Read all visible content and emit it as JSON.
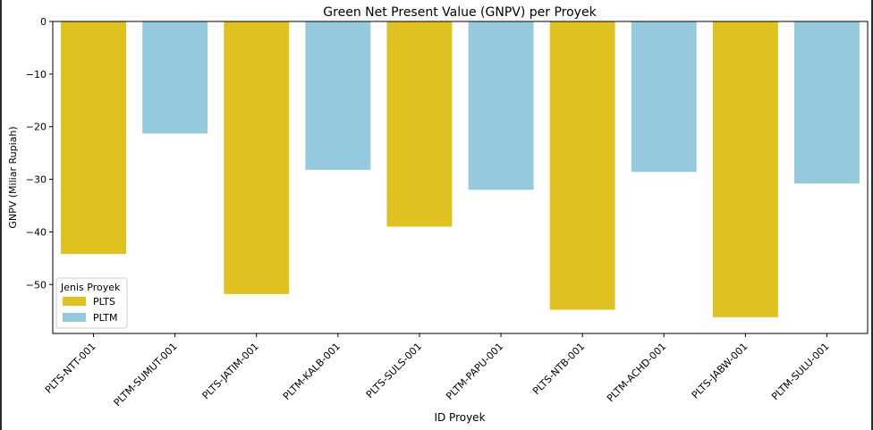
{
  "chart_data": {
    "type": "bar",
    "title": "Green Net Present Value (GNPV) per Proyek",
    "xlabel": "ID Proyek",
    "ylabel": "GNPV (Miliar Rupiah)",
    "ylim": [
      -59.3,
      0
    ],
    "yticks": [
      0,
      -10,
      -20,
      -30,
      -40,
      -50
    ],
    "categories": [
      "PLTS-NTT-001",
      "PLTM-SUMUT-001",
      "PLTS-JATIM-001",
      "PLTM-KALB-001",
      "PLTS-SULS-001",
      "PLTM-PAPU-001",
      "PLTS-NTB-001",
      "PLTM-ACHD-001",
      "PLTS-JABW-001",
      "PLTM-SULU-001"
    ],
    "values": [
      -44.2,
      -21.3,
      -51.8,
      -28.2,
      -39.0,
      -32.0,
      -54.8,
      -28.6,
      -56.2,
      -30.8
    ],
    "bar_series": [
      "PLTS",
      "PLTM",
      "PLTS",
      "PLTM",
      "PLTS",
      "PLTM",
      "PLTS",
      "PLTM",
      "PLTS",
      "PLTM"
    ],
    "legend": {
      "title": "Jenis Proyek",
      "position": "lower-left",
      "entries": [
        {
          "name": "PLTS",
          "color": "#dfc21f"
        },
        {
          "name": "PLTM",
          "color": "#95c9de"
        }
      ]
    },
    "grid": false
  }
}
